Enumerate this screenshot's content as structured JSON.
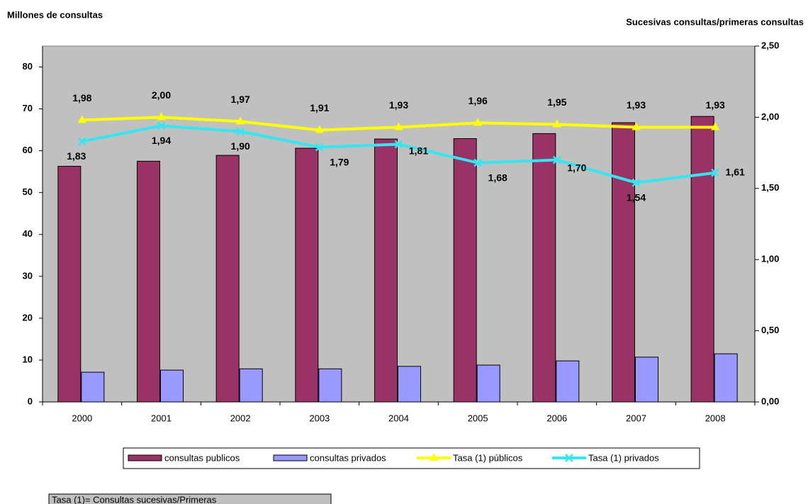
{
  "chart_data": {
    "type": "bar",
    "title_left": "Millones de consultas",
    "title_right": "Sucesivas consultas/primeras consultas",
    "note": "Tasa (1)= Consultas sucesivas/Primeras",
    "categories": [
      "2000",
      "2001",
      "2002",
      "2003",
      "2004",
      "2005",
      "2006",
      "2007",
      "2008"
    ],
    "ylim": [
      0,
      85
    ],
    "yticks": [
      0,
      10,
      20,
      30,
      40,
      50,
      60,
      70,
      80
    ],
    "y2lim": [
      0,
      2.5
    ],
    "y2ticks": [
      {
        "value": 0,
        "label": "0,00"
      },
      {
        "value": 0.5,
        "label": "0,50"
      },
      {
        "value": 1,
        "label": "1,00"
      },
      {
        "value": 1.5,
        "label": "1,50"
      },
      {
        "value": 2,
        "label": "2,00"
      },
      {
        "value": 2.5,
        "label": "2,50"
      }
    ],
    "plot_background": "#c0c0c0",
    "series": [
      {
        "name": "consultas publicos",
        "type": "bar",
        "color": "#993366",
        "values": [
          56.3,
          57.5,
          58.9,
          60.6,
          62.8,
          62.9,
          64.1,
          66.7,
          68.2
        ]
      },
      {
        "name": "consultas privados",
        "type": "bar",
        "color": "#9999ff",
        "values": [
          7.1,
          7.6,
          7.9,
          7.9,
          8.5,
          8.8,
          9.8,
          10.7,
          11.5
        ]
      },
      {
        "name": "Tasa (1) públicos",
        "type": "line",
        "axis": "y2",
        "marker": "triangle",
        "color": "#ffff00",
        "values": [
          1.98,
          2.0,
          1.97,
          1.91,
          1.93,
          1.96,
          1.95,
          1.93,
          1.93
        ],
        "value_labels": [
          "1,98",
          "2,00",
          "1,97",
          "1,91",
          "1,93",
          "1,96",
          "1,95",
          "1,93",
          "1,93"
        ]
      },
      {
        "name": "Tasa (1) privados",
        "type": "line",
        "axis": "y2",
        "marker": "x",
        "color": "#33e6f2",
        "values": [
          1.83,
          1.94,
          1.9,
          1.79,
          1.81,
          1.68,
          1.7,
          1.54,
          1.61
        ],
        "value_labels": [
          "1,83",
          "1,94",
          "1,90",
          "1,79",
          "1,81",
          "1,68",
          "1,70",
          "1,54",
          "1,61"
        ]
      }
    ]
  }
}
